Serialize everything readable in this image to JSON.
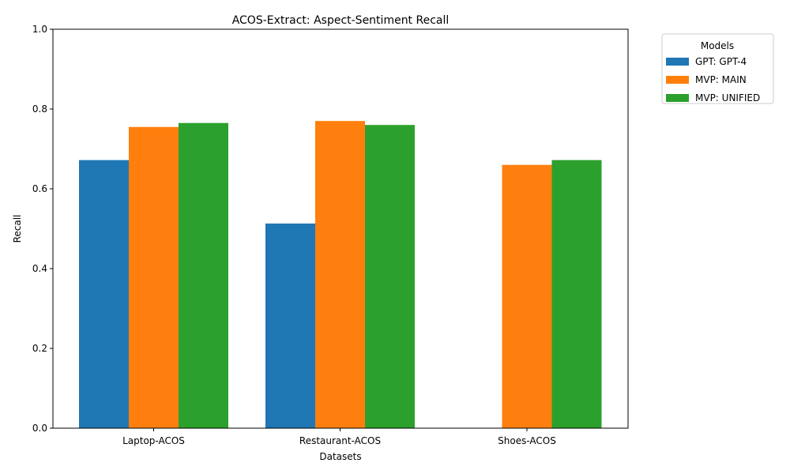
{
  "chart_data": {
    "type": "bar",
    "title": "ACOS-Extract: Aspect-Sentiment Recall",
    "xlabel": "Datasets",
    "ylabel": "Recall",
    "ylim": [
      0,
      1.0
    ],
    "yticks": [
      "0.0",
      "0.2",
      "0.4",
      "0.6",
      "0.8",
      "1.0"
    ],
    "categories": [
      "Laptop-ACOS",
      "Restaurant-ACOS",
      "Shoes-ACOS"
    ],
    "series": [
      {
        "name": "GPT: GPT-4",
        "color": "#1f77b4",
        "values": [
          0.672,
          0.513,
          null
        ]
      },
      {
        "name": "MVP: MAIN",
        "color": "#ff7f0e",
        "values": [
          0.755,
          0.77,
          0.66
        ]
      },
      {
        "name": "MVP: UNIFIED",
        "color": "#2ca02c",
        "values": [
          0.765,
          0.76,
          0.672
        ]
      }
    ],
    "legend": {
      "title": "Models",
      "placement": "outside-top-right"
    },
    "grid": false
  }
}
